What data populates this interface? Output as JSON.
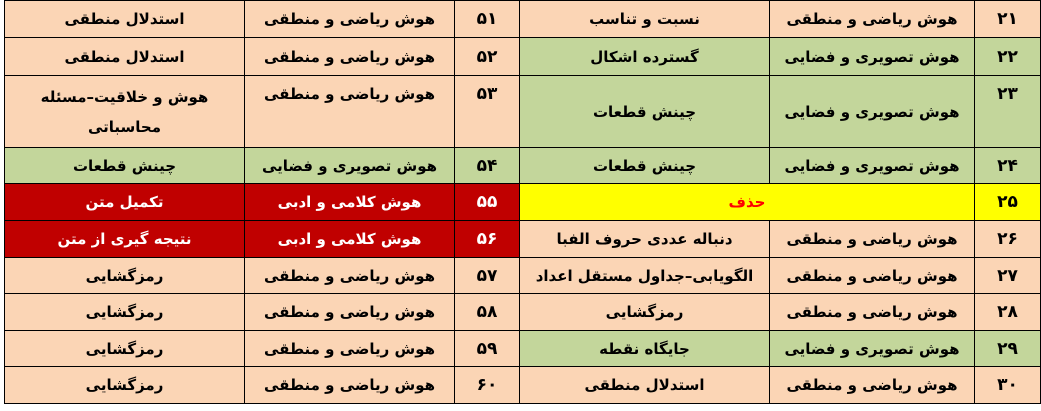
{
  "colors": {
    "peach": "#FBD5B5",
    "green": "#C3D69B",
    "red": "#C00000",
    "yellow": "#FFFF00",
    "deleted_text": "#FF0000"
  },
  "rows": [
    {
      "right": {
        "num": "۲۱",
        "category": "هوش ریاضی و منطقی",
        "topic": "نسبت و تناسب",
        "color": "peach"
      },
      "left": {
        "num": "۵۱",
        "category": "هوش ریاضی و منطقی",
        "topic": "استدلال منطقی",
        "color": "peach"
      }
    },
    {
      "right": {
        "num": "۲۲",
        "category": "هوش تصویری و فضایی",
        "topic": "گسترده اشکال",
        "color": "green"
      },
      "left": {
        "num": "۵۲",
        "category": "هوش ریاضی و منطقی",
        "topic": "استدلال منطقی",
        "color": "peach"
      }
    },
    {
      "right": {
        "num": "۲۳",
        "category": "هوش تصویری و فضایی",
        "topic": "چینش قطعات",
        "color": "green"
      },
      "left": {
        "num": "۵۳",
        "category": "هوش ریاضی و منطقی",
        "topic": "هوش و خلاقیت–مسئله محاسباتی",
        "color": "peach"
      }
    },
    {
      "right": {
        "num": "۲۴",
        "category": "هوش تصویری و فضایی",
        "topic": "چینش قطعات",
        "color": "green"
      },
      "left": {
        "num": "۵۴",
        "category": "هوش تصویری و فضایی",
        "topic": "چینش قطعات",
        "color": "green"
      }
    },
    {
      "right": {
        "num": "۲۵",
        "merged": "حذف",
        "color": "yellow"
      },
      "left": {
        "num": "۵۵",
        "category": "هوش کلامی و ادبی",
        "topic": "تکمیل متن",
        "color": "red"
      }
    },
    {
      "right": {
        "num": "۲۶",
        "category": "هوش ریاضی و منطقی",
        "topic": "دنباله عددی حروف الفبا",
        "color": "peach"
      },
      "left": {
        "num": "۵۶",
        "category": "هوش کلامی و ادبی",
        "topic": "نتیجه گیری از متن",
        "color": "red"
      }
    },
    {
      "right": {
        "num": "۲۷",
        "category": "هوش ریاضی و منطقی",
        "topic": "الگویابی–جداول مستقل اعداد",
        "color": "peach"
      },
      "left": {
        "num": "۵۷",
        "category": "هوش ریاضی و منطقی",
        "topic": "رمزگشایی",
        "color": "peach"
      }
    },
    {
      "right": {
        "num": "۲۸",
        "category": "هوش ریاضی و منطقی",
        "topic": "رمزگشایی",
        "color": "peach"
      },
      "left": {
        "num": "۵۸",
        "category": "هوش ریاضی و منطقی",
        "topic": "رمزگشایی",
        "color": "peach"
      }
    },
    {
      "right": {
        "num": "۲۹",
        "category": "هوش تصویری و فضایی",
        "topic": "جایگاه نقطه",
        "color": "green"
      },
      "left": {
        "num": "۵۹",
        "category": "هوش ریاضی و منطقی",
        "topic": "رمزگشایی",
        "color": "peach"
      }
    },
    {
      "right": {
        "num": "۳۰",
        "category": "هوش ریاضی و منطقی",
        "topic": "استدلال منطقی",
        "color": "peach"
      },
      "left": {
        "num": "۶۰",
        "category": "هوش ریاضی و منطقی",
        "topic": "رمزگشایی",
        "color": "peach"
      }
    }
  ]
}
